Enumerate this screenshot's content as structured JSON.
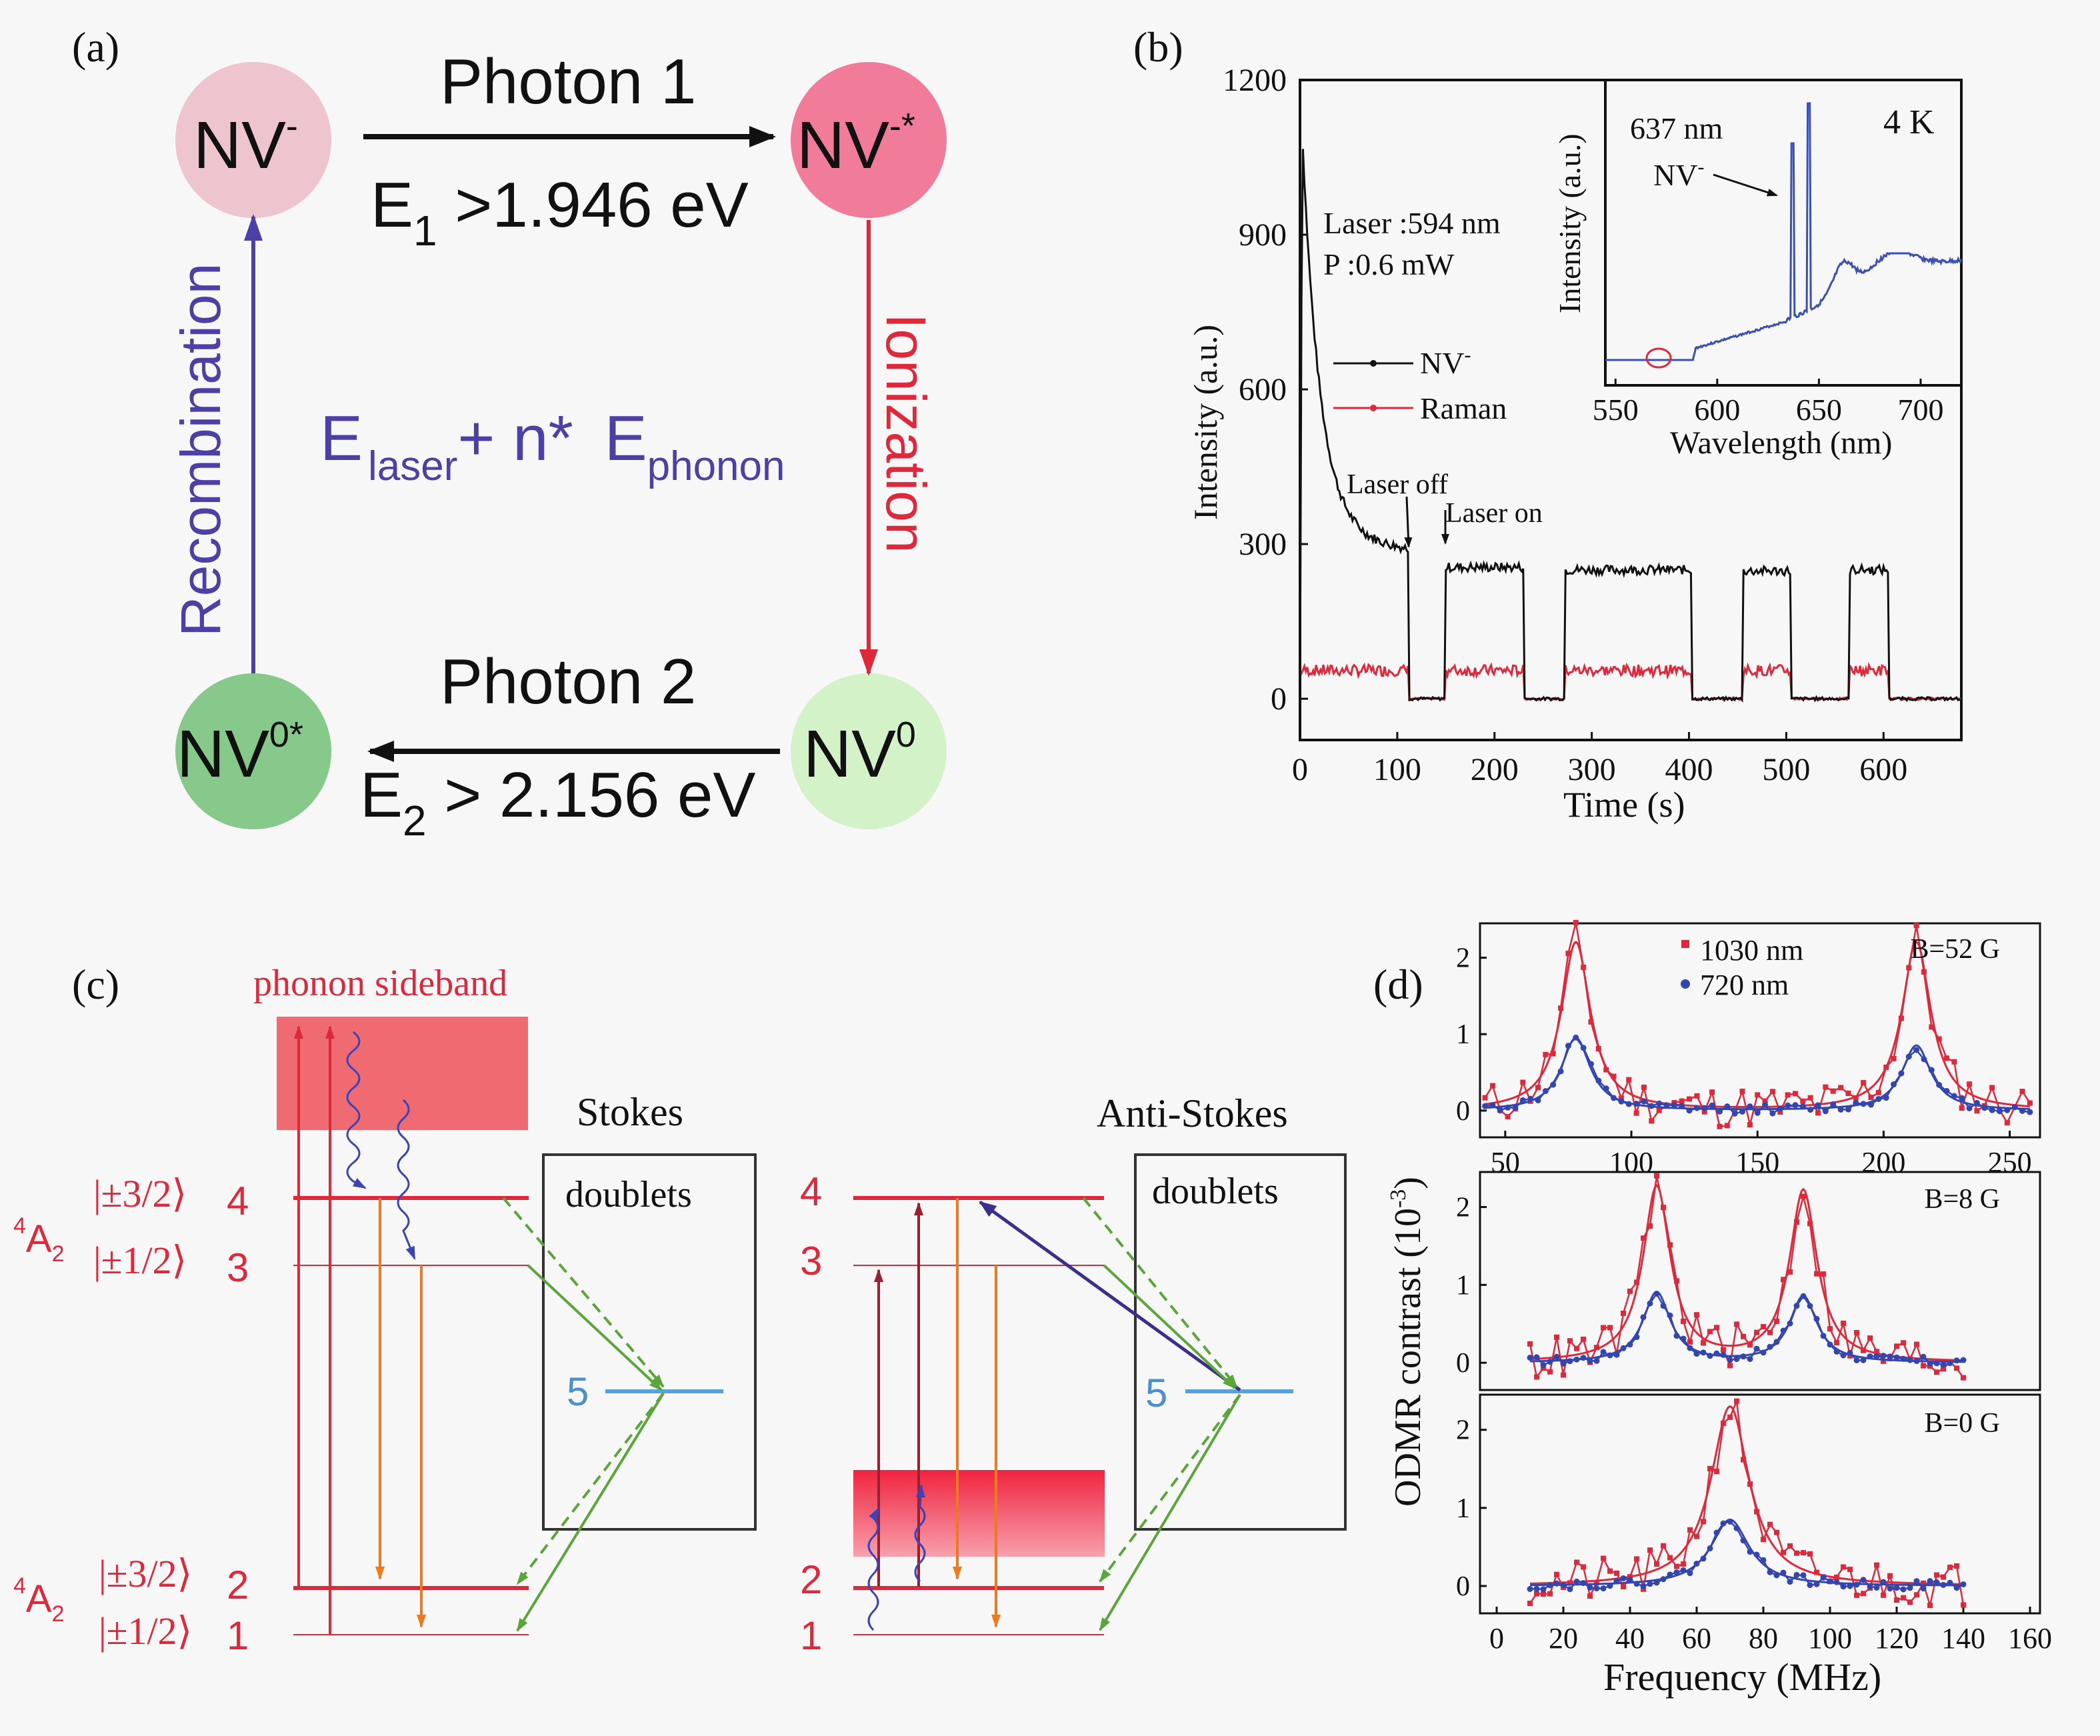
{
  "panels": {
    "a": {
      "label": "(a)",
      "states": {
        "nv_minus": "NV",
        "nv_minus_sup": "-",
        "nv_minus_star": "NV",
        "nv_minus_star_sup": "-*",
        "nv0": "NV",
        "nv0_sup": "0",
        "nv0_star": "NV",
        "nv0_star_sup": "0*"
      },
      "photon1": "Photon 1",
      "e1": {
        "main": "E",
        "sub": "1",
        "rest": " >1.946 eV"
      },
      "photon2": "Photon 2",
      "e2": {
        "main": "E",
        "sub": "2",
        "rest": " > 2.156 eV"
      },
      "recombination": "Recombination",
      "ionization": "Ionization",
      "center": {
        "e1": "E",
        "sub1": "laser",
        "plus": "+ n* ",
        "e2": "E",
        "sub2": "phonon"
      },
      "colors": {
        "nv_minus": "#eec5cf",
        "nv_minus_star": "#f07c9a",
        "nv0": "#d4f2c8",
        "nv0_star": "#86c98a",
        "blue": "#4c3fa6",
        "red": "#e0283b"
      }
    },
    "b": {
      "label": "(b)",
      "ylabel": "Intensity (a.u.)",
      "xlabel": "Time (s)",
      "laser_line1": "Laser :594 nm",
      "laser_line2": "P :0.6 mW",
      "laser_off": "Laser off",
      "laser_on": "Laser on",
      "legend": [
        "NV",
        "Raman"
      ],
      "legend_sup": "-",
      "inset": {
        "ylabel": "Intensity (a.u.)",
        "xlabel": "Wavelength (nm)",
        "temp": "4 K",
        "peak_label": "637 nm",
        "nv_label": "NV",
        "nv_sup": "-"
      }
    },
    "c": {
      "label": "(c)",
      "phonon_sideband": "phonon sideband",
      "stokes": "Stokes",
      "anti_stokes": "Anti-Stokes",
      "doublets": "doublets",
      "state_4a2": "A",
      "state_4a2_sup": "4",
      "state_4a2_sub": "2",
      "kets": [
        "|±3/2⟩",
        "|±1/2⟩",
        "|±3/2⟩",
        "|±1/2⟩"
      ],
      "levels": [
        "4",
        "3",
        "2",
        "1"
      ],
      "level5": "5",
      "right_levels": [
        "4",
        "3",
        "2",
        "1"
      ]
    },
    "d": {
      "label": "(d)",
      "ylabel": "ODMR contrast (10",
      "ylabel_sup": "-3",
      "ylabel_end": ")",
      "xlabel": "Frequency (MHz)",
      "legend": [
        "1030 nm",
        "720 nm"
      ],
      "fields": [
        "B=52 G",
        "B=8 G",
        "B=0 G"
      ]
    }
  },
  "chart_data": [
    {
      "type": "line",
      "title": "(b)",
      "xlabel": "Time (s)",
      "ylabel": "Intensity (a.u.)",
      "xlim": [
        0,
        680
      ],
      "ylim": [
        -80,
        1200
      ],
      "x_ticks": [
        0,
        100,
        200,
        300,
        400,
        500,
        600
      ],
      "y_ticks": [
        0,
        300,
        600,
        900,
        1200
      ],
      "on_intervals": [
        [
          0,
          112
        ],
        [
          150,
          230
        ],
        [
          272,
          403
        ],
        [
          455,
          505
        ],
        [
          565,
          605
        ]
      ],
      "series": [
        {
          "name": "NV-",
          "color": "#111111",
          "peak": 1050,
          "plateau_levels": [
            275,
            255,
            250,
            248,
            250,
            252
          ],
          "decay_tau": 18
        },
        {
          "name": "Raman",
          "color": "#e0283b",
          "on_level": 55,
          "off_level": 0
        }
      ]
    },
    {
      "type": "line",
      "title": "inset 4 K",
      "xlabel": "Wavelength (nm)",
      "ylabel": "Intensity (a.u.)",
      "xlim": [
        545,
        720
      ],
      "x_ticks": [
        550,
        600,
        650,
        700
      ],
      "peaks": [
        {
          "x": 637,
          "label": "637 nm"
        },
        {
          "x": 645
        }
      ],
      "series": [
        {
          "name": "spectrum",
          "color": "#3a4fb8"
        }
      ]
    },
    {
      "type": "line",
      "title": "B=52 G",
      "xlim": [
        40,
        262
      ],
      "ylim": [
        -0.35,
        2.45
      ],
      "x_ticks": [
        50,
        100,
        150,
        200,
        250
      ],
      "y_ticks": [
        0,
        1,
        2
      ],
      "series": [
        {
          "name": "1030 nm",
          "color": "#e0283b",
          "peaks": [
            [
              78,
              2.2,
              7
            ],
            [
              213,
              2.2,
              7
            ]
          ]
        },
        {
          "name": "720 nm",
          "color": "#3346b0",
          "peaks": [
            [
              78,
              0.95,
              7
            ],
            [
              213,
              0.85,
              7
            ]
          ]
        }
      ]
    },
    {
      "type": "line",
      "title": "B=8 G",
      "xlim": [
        -5,
        163
      ],
      "ylim": [
        -0.35,
        2.45
      ],
      "x_ticks": [],
      "y_ticks": [
        0,
        1,
        2
      ],
      "series": [
        {
          "name": "1030 nm",
          "color": "#e0283b",
          "peaks": [
            [
              48,
              2.25,
              5
            ],
            [
              92,
              2.2,
              5
            ]
          ]
        },
        {
          "name": "720 nm",
          "color": "#3346b0",
          "peaks": [
            [
              48,
              0.9,
              5
            ],
            [
              92,
              0.85,
              5
            ]
          ]
        }
      ]
    },
    {
      "type": "line",
      "title": "B=0 G",
      "xlabel": "Frequency (MHz)",
      "xlim": [
        -5,
        163
      ],
      "ylim": [
        -0.35,
        2.45
      ],
      "x_ticks": [
        0,
        20,
        40,
        60,
        80,
        100,
        120,
        140,
        160
      ],
      "y_ticks": [
        0,
        1,
        2
      ],
      "series": [
        {
          "name": "1030 nm",
          "color": "#e0283b",
          "peaks": [
            [
              70,
              2.3,
              7
            ]
          ]
        },
        {
          "name": "720 nm",
          "color": "#3346b0",
          "peaks": [
            [
              70,
              0.85,
              7
            ]
          ]
        }
      ]
    }
  ]
}
